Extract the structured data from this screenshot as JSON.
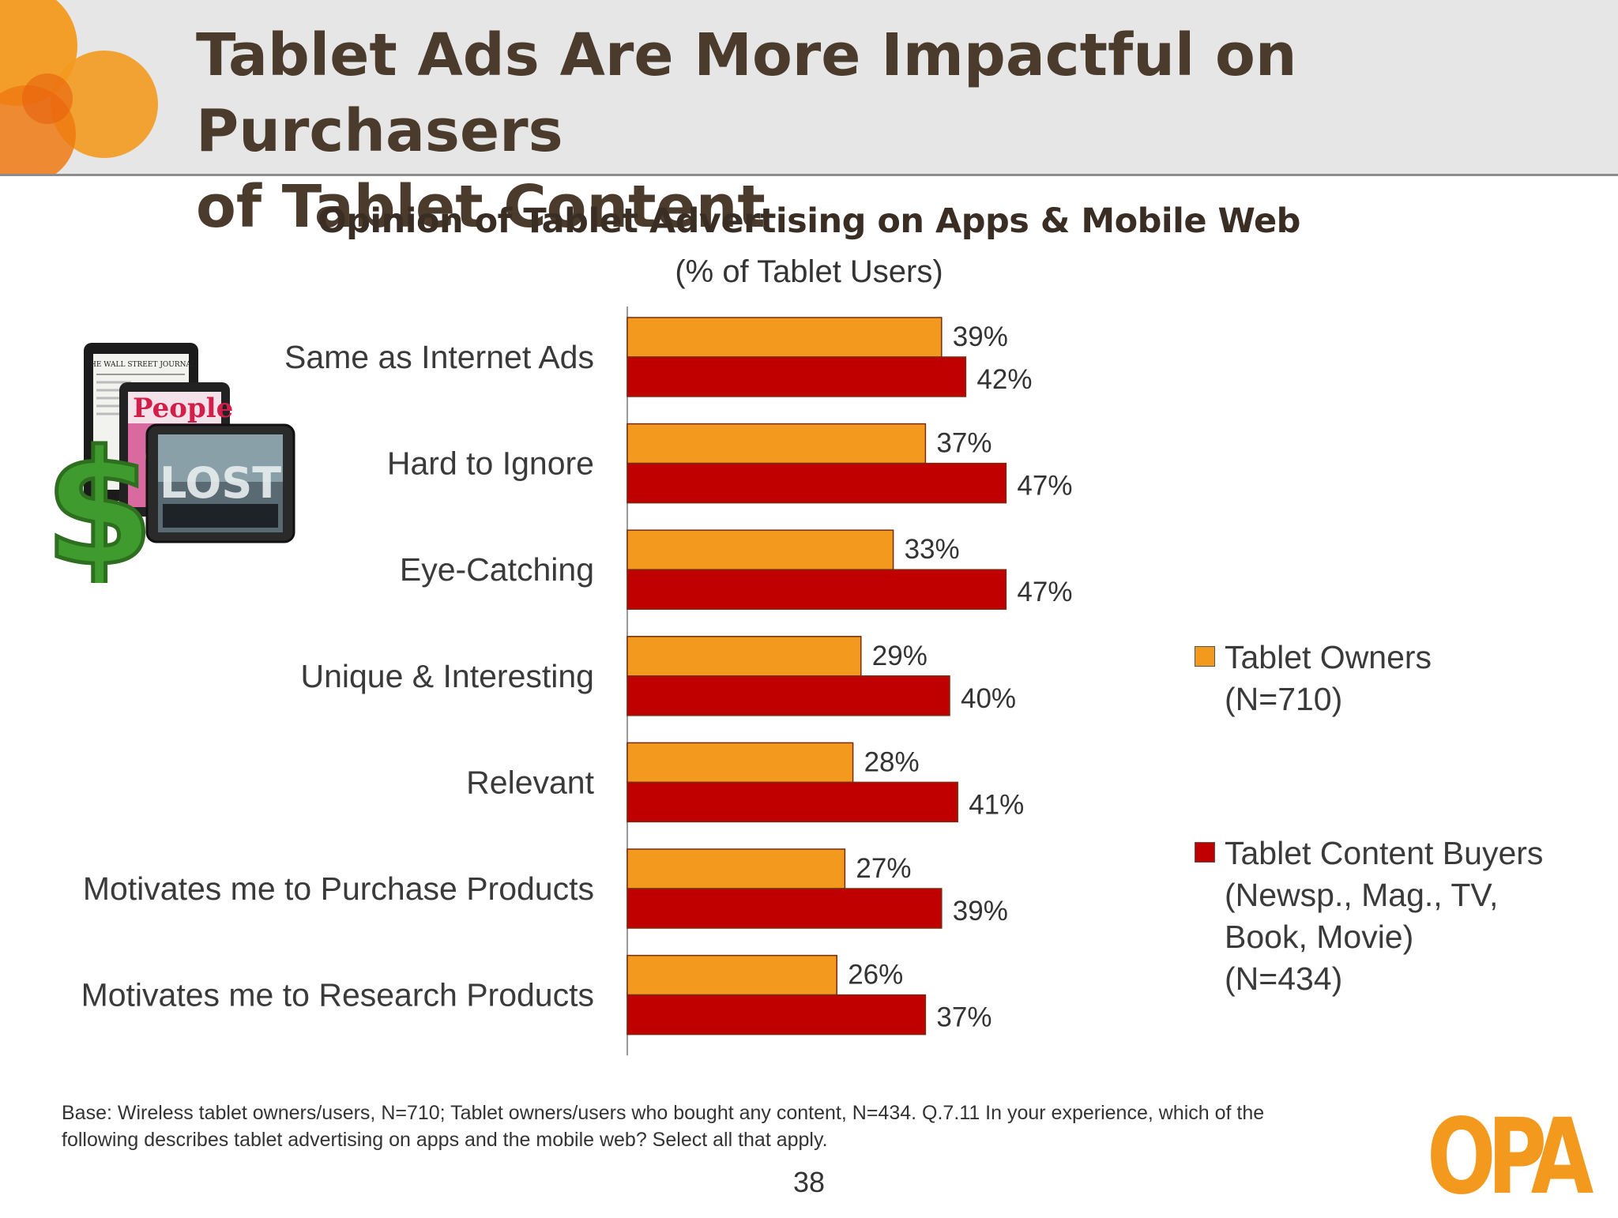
{
  "slide": {
    "title_line1": "Tablet Ads Are More Impactful on Purchasers",
    "title_line2": "of Tablet Content",
    "page_number": "38",
    "logo_text": "OPA",
    "footnote_line1": "Base:  Wireless tablet owners/users, N=710; Tablet owners/users who bought any content, N=434. Q.7.11 In your experience, which of the",
    "footnote_line2": "following describes tablet advertising on apps and the mobile web? Select all that apply.",
    "image_text": {
      "newspaper": "THE WALL STREET JOURNAL",
      "magazine": "People",
      "show": "LOST"
    }
  },
  "colors": {
    "tablet_owners": "#f39a1e",
    "content_buyers": "#c00000",
    "header_bg": "#e6e6e6",
    "title_text": "#4a3b2c",
    "decor_orange": "#f39a1e"
  },
  "chart_data": {
    "type": "bar",
    "orientation": "horizontal",
    "title": "Opinion of Tablet Advertising on Apps & Mobile Web",
    "subtitle": "(% of Tablet Users)",
    "categories": [
      "Same as Internet Ads",
      "Hard to Ignore",
      "Eye-Catching",
      "Unique & Interesting",
      "Relevant",
      "Motivates me to Purchase Products",
      "Motivates me to Research Products"
    ],
    "series": [
      {
        "name": "Tablet Owners (N=710)",
        "legend_lines": [
          "Tablet Owners",
          "(N=710)"
        ],
        "color": "#f39a1e",
        "values": [
          39,
          37,
          33,
          29,
          28,
          27,
          26
        ]
      },
      {
        "name": "Tablet Content Buyers (Newsp., Mag., TV, Book, Movie) (N=434)",
        "legend_lines": [
          "Tablet Content Buyers",
          "(Newsp., Mag., TV,",
          "Book, Movie)",
          "(N=434)"
        ],
        "color": "#c00000",
        "values": [
          42,
          47,
          47,
          40,
          41,
          39,
          37
        ]
      }
    ],
    "value_suffix": "%",
    "xlim": [
      0,
      100
    ],
    "grid": false,
    "legend_position": "right"
  }
}
